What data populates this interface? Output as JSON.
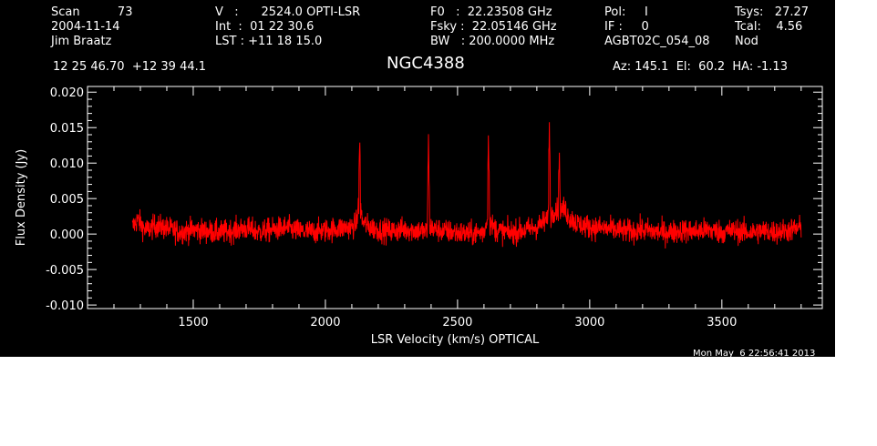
{
  "header": {
    "col1": [
      "Scan          73",
      "2004-11-14",
      "Jim Braatz"
    ],
    "col2": [
      "V   :      2524.0 OPTI-LSR",
      "Int  :  01 22 30.6",
      "LST : +11 18 15.0"
    ],
    "col3": [
      "F0   :  22.23508 GHz",
      "Fsky :  22.05146 GHz",
      "BW   : 200.0000 MHz"
    ],
    "col4": [
      "Pol:     I",
      "IF :     0",
      "AGBT02C_054_08"
    ],
    "col5": [
      "Tsys:   27.27",
      "Tcal:    4.56",
      "Nod"
    ],
    "coords": "12 25 46.70  +12 39 44.1",
    "source": "NGC4388",
    "azel": "Az: 145.1  El:  60.2  HA: -1.13",
    "timestamp": "Mon May  6 22:56:41 2013"
  },
  "chart_data": {
    "type": "line",
    "xlabel": "LSR Velocity (km/s) OPTICAL",
    "ylabel": "Flux Density (Jy)",
    "xlim": [
      1100,
      3880
    ],
    "ylim": [
      -0.0105,
      0.0208
    ],
    "xticks": [
      1500,
      2000,
      2500,
      3000,
      3500
    ],
    "xtick_labels": [
      "1500",
      "2000",
      "2500",
      "3000",
      "3500"
    ],
    "yticks": [
      -0.01,
      -0.005,
      0.0,
      0.005,
      0.01,
      0.015,
      0.02
    ],
    "ytick_labels": [
      "-0.010",
      "-0.005",
      "0.000",
      "0.005",
      "0.010",
      "0.015",
      "0.020"
    ],
    "line_color": "#ff0000",
    "series": [
      {
        "x": [
          1270,
          1290,
          1320,
          1360,
          1400,
          1450,
          1500,
          1550,
          1600,
          1650,
          1700,
          1750,
          1800,
          1850,
          1900,
          1950,
          2000,
          2050,
          2100,
          2120,
          2130,
          2135,
          2140,
          2160,
          2200,
          2250,
          2300,
          2350,
          2385,
          2390,
          2395,
          2420,
          2450,
          2500,
          2550,
          2600,
          2612,
          2617,
          2622,
          2650,
          2700,
          2750,
          2800,
          2840,
          2848,
          2852,
          2860,
          2875,
          2885,
          2890,
          2895,
          2905,
          2920,
          2950,
          3000,
          3050,
          3100,
          3150,
          3200,
          3250,
          3300,
          3350,
          3400,
          3450,
          3500,
          3550,
          3600,
          3650,
          3700,
          3750,
          3790,
          3800
        ],
        "y": [
          0.001,
          0.002,
          0.0005,
          0.0012,
          0.0008,
          0.0003,
          0.0006,
          0.0004,
          0.0002,
          0.0005,
          0.0008,
          0.0003,
          0.0006,
          0.0009,
          0.0004,
          0.0003,
          0.0005,
          0.0008,
          0.001,
          0.0016,
          0.0126,
          0.003,
          0.0018,
          0.0011,
          0.0006,
          0.0004,
          0.0007,
          0.0005,
          0.0003,
          0.0132,
          0.001,
          0.0006,
          0.0004,
          0.0002,
          0.0,
          0.0003,
          0.002,
          0.0145,
          0.0015,
          0.0005,
          0.0002,
          0.0005,
          0.001,
          0.002,
          0.0155,
          0.0025,
          0.003,
          0.004,
          0.01,
          0.006,
          0.007,
          0.0035,
          0.0025,
          0.0015,
          0.001,
          0.0008,
          0.0006,
          0.0004,
          0.0006,
          0.0003,
          0.0002,
          0.0005,
          0.0004,
          0.0006,
          0.0003,
          0.0005,
          0.0002,
          0.0004,
          0.0003,
          0.0005,
          0.0008,
          0.001
        ]
      }
    ],
    "noise_rms": 0.0012
  }
}
